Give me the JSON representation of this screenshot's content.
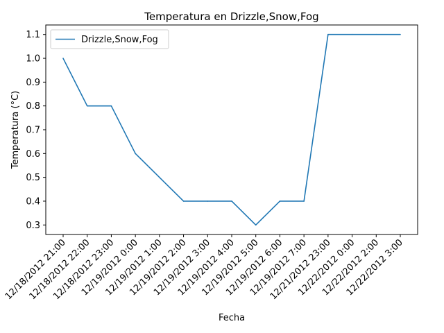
{
  "chart_data": {
    "type": "line",
    "title": "Temperatura en Drizzle,Snow,Fog",
    "xlabel": "Fecha",
    "ylabel": "Temperatura (°C)",
    "categories": [
      "12/18/2012 21:00",
      "12/18/2012 22:00",
      "12/18/2012 23:00",
      "12/19/2012 0:00",
      "12/19/2012 1:00",
      "12/19/2012 2:00",
      "12/19/2012 3:00",
      "12/19/2012 4:00",
      "12/19/2012 5:00",
      "12/19/2012 6:00",
      "12/19/2012 7:00",
      "12/21/2012 23:00",
      "12/22/2012 0:00",
      "12/22/2012 2:00",
      "12/22/2012 3:00"
    ],
    "series": [
      {
        "name": "Drizzle,Snow,Fog",
        "values": [
          1.0,
          0.8,
          0.8,
          0.6,
          0.5,
          0.4,
          0.4,
          0.4,
          0.3,
          0.4,
          0.4,
          1.1,
          1.1,
          1.1,
          1.1
        ],
        "color": "#1f77b4"
      }
    ],
    "ylim": [
      0.26,
      1.14
    ],
    "yticks": [
      0.3,
      0.4,
      0.5,
      0.6,
      0.7,
      0.8,
      0.9,
      1.0,
      1.1
    ],
    "grid": false,
    "legend_position": "top-left"
  }
}
